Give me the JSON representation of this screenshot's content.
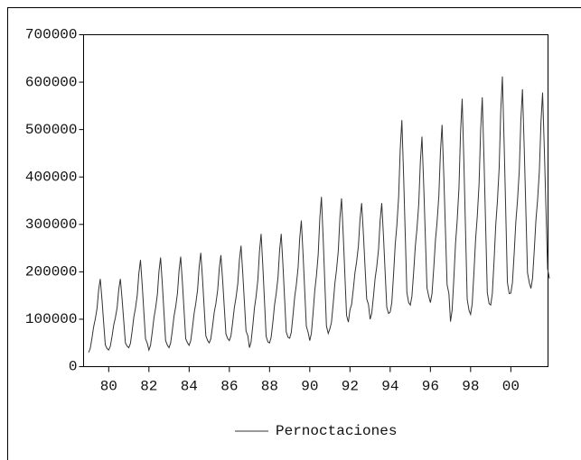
{
  "chart_data": {
    "type": "line",
    "x": [
      1979,
      1979.08,
      1979.17,
      1979.25,
      1979.33,
      1979.42,
      1979.5,
      1979.58,
      1979.67,
      1979.75,
      1979.83,
      1979.92,
      1980,
      1980.08,
      1980.17,
      1980.25,
      1980.33,
      1980.42,
      1980.5,
      1980.58,
      1980.67,
      1980.75,
      1980.83,
      1980.92,
      1981,
      1981.08,
      1981.17,
      1981.25,
      1981.33,
      1981.42,
      1981.5,
      1981.58,
      1981.67,
      1981.75,
      1981.83,
      1981.92,
      1982,
      1982.08,
      1982.17,
      1982.25,
      1982.33,
      1982.42,
      1982.5,
      1982.58,
      1982.67,
      1982.75,
      1982.83,
      1982.92,
      1983,
      1983.08,
      1983.17,
      1983.25,
      1983.33,
      1983.42,
      1983.5,
      1983.58,
      1983.67,
      1983.75,
      1983.83,
      1983.92,
      1984,
      1984.08,
      1984.17,
      1984.25,
      1984.33,
      1984.42,
      1984.5,
      1984.58,
      1984.67,
      1984.75,
      1984.83,
      1984.92,
      1985,
      1985.08,
      1985.17,
      1985.25,
      1985.33,
      1985.42,
      1985.5,
      1985.58,
      1985.67,
      1985.75,
      1985.83,
      1985.92,
      1986,
      1986.08,
      1986.17,
      1986.25,
      1986.33,
      1986.42,
      1986.5,
      1986.58,
      1986.67,
      1986.75,
      1986.83,
      1986.92,
      1987,
      1987.08,
      1987.17,
      1987.25,
      1987.33,
      1987.42,
      1987.5,
      1987.58,
      1987.67,
      1987.75,
      1987.83,
      1987.92,
      1988,
      1988.08,
      1988.17,
      1988.25,
      1988.33,
      1988.42,
      1988.5,
      1988.58,
      1988.67,
      1988.75,
      1988.83,
      1988.92,
      1989,
      1989.08,
      1989.17,
      1989.25,
      1989.33,
      1989.42,
      1989.5,
      1989.58,
      1989.67,
      1989.75,
      1989.83,
      1989.92,
      1990,
      1990.08,
      1990.17,
      1990.25,
      1990.33,
      1990.42,
      1990.5,
      1990.58,
      1990.67,
      1990.75,
      1990.83,
      1990.92,
      1991,
      1991.08,
      1991.17,
      1991.25,
      1991.33,
      1991.42,
      1991.5,
      1991.58,
      1991.67,
      1991.75,
      1991.83,
      1991.92,
      1992,
      1992.08,
      1992.17,
      1992.25,
      1992.33,
      1992.42,
      1992.5,
      1992.58,
      1992.67,
      1992.75,
      1992.83,
      1992.92,
      1993,
      1993.08,
      1993.17,
      1993.25,
      1993.33,
      1993.42,
      1993.5,
      1993.58,
      1993.67,
      1993.75,
      1993.83,
      1993.92,
      1994,
      1994.08,
      1994.17,
      1994.25,
      1994.33,
      1994.42,
      1994.5,
      1994.58,
      1994.67,
      1994.75,
      1994.83,
      1994.92,
      1995,
      1995.08,
      1995.17,
      1995.25,
      1995.33,
      1995.42,
      1995.5,
      1995.58,
      1995.67,
      1995.75,
      1995.83,
      1995.92,
      1996,
      1996.08,
      1996.17,
      1996.25,
      1996.33,
      1996.42,
      1996.5,
      1996.58,
      1996.67,
      1996.75,
      1996.83,
      1996.92,
      1997,
      1997.08,
      1997.17,
      1997.25,
      1997.33,
      1997.42,
      1997.5,
      1997.58,
      1997.67,
      1997.75,
      1997.83,
      1997.92,
      1998,
      1998.08,
      1998.17,
      1998.25,
      1998.33,
      1998.42,
      1998.5,
      1998.58,
      1998.67,
      1998.75,
      1998.83,
      1998.92,
      1999,
      1999.08,
      1999.17,
      1999.25,
      1999.33,
      1999.42,
      1999.5,
      1999.58,
      1999.67,
      1999.75,
      1999.83,
      1999.92,
      2000,
      2000.08,
      2000.17,
      2000.25,
      2000.33,
      2000.42,
      2000.5,
      2000.58,
      2000.67,
      2000.75,
      2000.83,
      2000.92,
      2001,
      2001.08,
      2001.17,
      2001.25,
      2001.33,
      2001.42,
      2001.5,
      2001.58,
      2001.67,
      2001.75,
      2001.83,
      2001.92
    ],
    "series": [
      {
        "name": "Pernoctaciones",
        "color": "#333333",
        "values": [
          30000,
          38000,
          61000,
          84000,
          100000,
          123000,
          162000,
          185000,
          139000,
          92000,
          46000,
          38000,
          35000,
          43000,
          65000,
          88000,
          103000,
          125000,
          163000,
          185000,
          140000,
          95000,
          50000,
          43000,
          40000,
          49000,
          77000,
          105000,
          123000,
          151000,
          197000,
          225000,
          170000,
          114000,
          59000,
          49000,
          35000,
          45000,
          74000,
          103000,
          123000,
          152000,
          201000,
          230000,
          172000,
          113000,
          55000,
          45000,
          40000,
          50000,
          78000,
          107000,
          126000,
          155000,
          203000,
          232000,
          174000,
          117000,
          59000,
          50000,
          45000,
          55000,
          84000,
          113000,
          133000,
          162000,
          211000,
          240000,
          182000,
          123000,
          65000,
          55000,
          50000,
          59000,
          87000,
          115000,
          133000,
          161000,
          207000,
          235000,
          180000,
          124000,
          69000,
          59000,
          55000,
          65000,
          95000,
          125000,
          145000,
          175000,
          225000,
          255000,
          195000,
          135000,
          75000,
          65000,
          40000,
          52000,
          88000,
          124000,
          148000,
          184000,
          244000,
          280000,
          208000,
          136000,
          64000,
          52000,
          50000,
          62000,
          96000,
          131000,
          154000,
          188000,
          246000,
          280000,
          211000,
          142000,
          73000,
          62000,
          60000,
          72000,
          110000,
          147000,
          172000,
          209000,
          271000,
          308000,
          234000,
          159000,
          85000,
          72000,
          55000,
          70000,
          116000,
          161000,
          191000,
          237000,
          313000,
          358000,
          267000,
          176000,
          85000,
          70000,
          80000,
          94000,
          135000,
          176000,
          204000,
          245000,
          314000,
          355000,
          273000,
          190000,
          108000,
          94000,
          120000,
          131000,
          165000,
          199000,
          221000,
          255000,
          311000,
          345000,
          278000,
          210000,
          143000,
          131000,
          100000,
          112000,
          149000,
          186000,
          210000,
          247000,
          308000,
          345000,
          272000,
          198000,
          125000,
          112000,
          115000,
          135000,
          196000,
          257000,
          297000,
          358000,
          459000,
          520000,
          399000,
          277000,
          156000,
          135000,
          130000,
          148000,
          201000,
          254000,
          290000,
          343000,
          432000,
          485000,
          379000,
          272000,
          166000,
          148000,
          135000,
          154000,
          210000,
          266000,
          304000,
          360000,
          454000,
          510000,
          398000,
          285000,
          173000,
          154000,
          95000,
          119000,
          189000,
          260000,
          307000,
          377000,
          495000,
          565000,
          424000,
          283000,
          142000,
          119000,
          110000,
          133000,
          202000,
          270000,
          316000,
          385000,
          499000,
          568000,
          431000,
          293000,
          156000,
          133000,
          130000,
          154000,
          226000,
          299000,
          347000,
          419000,
          540000,
          612000,
          467000,
          323000,
          178000,
          154000,
          155000,
          177000,
          241000,
          306000,
          349000,
          413000,
          521000,
          585000,
          456000,
          327000,
          198000,
          177000,
          165000,
          186000,
          248000,
          310000,
          351000,
          413000,
          516000,
          578000,
          454000,
          330000,
          206000,
          186000
        ]
      }
    ],
    "xlim": [
      1978.75,
      2001.85
    ],
    "xticks": [
      {
        "value": 1980,
        "label": "80"
      },
      {
        "value": 1982,
        "label": "82"
      },
      {
        "value": 1984,
        "label": "84"
      },
      {
        "value": 1986,
        "label": "86"
      },
      {
        "value": 1988,
        "label": "88"
      },
      {
        "value": 1990,
        "label": "90"
      },
      {
        "value": 1992,
        "label": "92"
      },
      {
        "value": 1994,
        "label": "94"
      },
      {
        "value": 1996,
        "label": "96"
      },
      {
        "value": 1998,
        "label": "98"
      },
      {
        "value": 2000,
        "label": "00"
      }
    ],
    "ylim": [
      0,
      700000
    ],
    "yticks": [
      0,
      100000,
      200000,
      300000,
      400000,
      500000,
      600000,
      700000
    ]
  }
}
